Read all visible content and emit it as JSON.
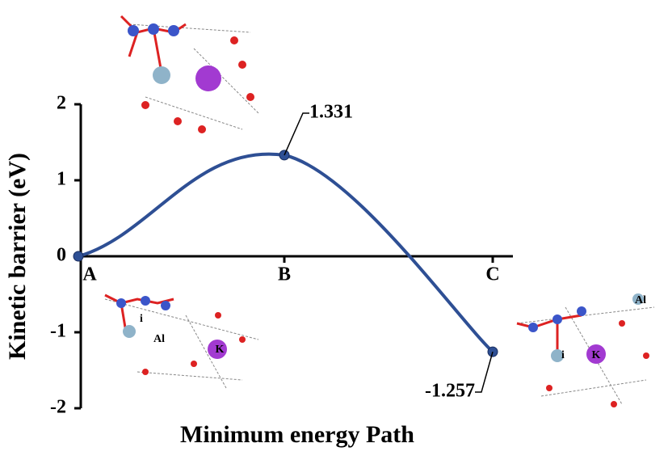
{
  "chart_data": {
    "type": "line",
    "categories": [
      "A",
      "B",
      "C"
    ],
    "values": [
      0,
      1.331,
      -1.257
    ],
    "color": "#2e4f94",
    "ylim": [
      -2,
      2
    ],
    "yticks": [
      2,
      1,
      0,
      -1,
      -2
    ],
    "xlabel": "Minimum energy Path",
    "ylabel": "Kinetic barrier (eV)",
    "structure_labels": [
      "i",
      "Al",
      "K",
      "Al",
      "i",
      "K"
    ]
  }
}
